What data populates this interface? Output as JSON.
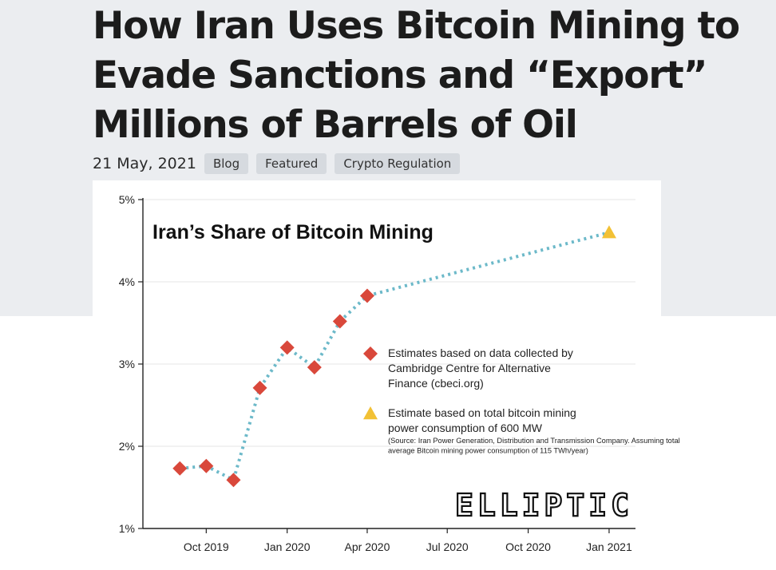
{
  "article": {
    "title": "How Iran Uses Bitcoin Mining to Evade Sanctions and “Export” Millions of Barrels of Oil",
    "date": "21 May, 2021",
    "tags": [
      "Blog",
      "Featured",
      "Crypto Regulation"
    ]
  },
  "colors": {
    "background": "#ffffff",
    "hero_background": "#ebedf0",
    "tag_background": "#d6dadf",
    "estimate_marker": "#d9483b",
    "projection_marker": "#f2c135",
    "trend_line": "#6cb9c9"
  },
  "chart_data": {
    "type": "line",
    "title": "Iran’s Share of Bitcoin Mining",
    "xlabel": "",
    "ylabel": "",
    "ylim": [
      1,
      5
    ],
    "y_ticks": [
      1,
      2,
      3,
      4,
      5
    ],
    "y_tick_labels": [
      "1%",
      "2%",
      "3%",
      "4%",
      "5%"
    ],
    "xlim": [
      "2019-07-21",
      "2021-01-31"
    ],
    "x_ticks": [
      "2019-10-01",
      "2020-01-01",
      "2020-04-01",
      "2020-07-01",
      "2020-10-01",
      "2021-01-01"
    ],
    "x_tick_labels": [
      "Oct 2019",
      "Jan 2020",
      "Apr 2020",
      "Jul 2020",
      "Oct 2020",
      "Jan 2021"
    ],
    "grid": true,
    "series": [
      {
        "name": "Estimates based on data collected by Cambridge Centre for Alternative Finance (cbeci.org)",
        "marker": "diamond",
        "x": [
          "2019-09-01",
          "2019-10-01",
          "2019-11-01",
          "2019-12-01",
          "2020-01-01",
          "2020-02-01",
          "2020-03-01",
          "2020-04-01"
        ],
        "y": [
          1.73,
          1.76,
          1.59,
          2.71,
          3.2,
          2.96,
          3.52,
          3.83
        ]
      },
      {
        "name": "Estimate based on total bitcoin mining power consumption of 600 MW",
        "marker": "triangle",
        "x": [
          "2021-01-01"
        ],
        "y": [
          4.6
        ]
      }
    ],
    "trend_line_style": "dotted",
    "legend_position": "center-right",
    "legend_note": "(Source: Iran Power Generation, Distribution and Transmission Company. Assuming total average Bitcoin mining power consumption of 115 TWh/year)",
    "watermark": "ELLIPTIC"
  }
}
